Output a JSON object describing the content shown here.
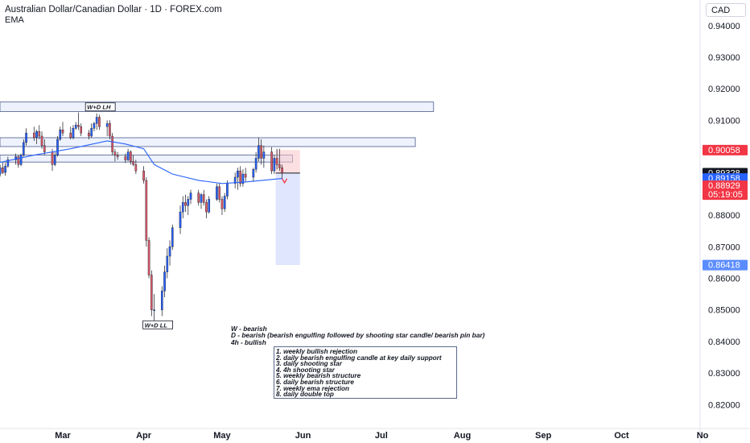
{
  "header": {
    "title": "Australian Dollar/Canadian Dollar · 1D · FOREX.com",
    "indicator": "EMA",
    "currency": "CAD"
  },
  "chart_data": {
    "type": "candlestick",
    "y_range": [
      0.8135,
      0.9435
    ],
    "y_ticks": [
      0.94,
      0.93,
      0.92,
      0.91,
      0.9,
      0.89,
      0.88,
      0.87,
      0.86,
      0.85,
      0.84,
      0.83,
      0.82
    ],
    "y_tick_labels": [
      "0.94000",
      "0.93000",
      "0.92000",
      "0.91000",
      "0.90000",
      "0.89000",
      "0.88000",
      "0.87000",
      "0.86000",
      "0.85000",
      "0.84000",
      "0.83000",
      "0.82000"
    ],
    "x_ticks": [
      {
        "label": "Mar",
        "date": "2024-03-01"
      },
      {
        "label": "Apr",
        "date": "2024-04-01"
      },
      {
        "label": "May",
        "date": "2024-05-01"
      },
      {
        "label": "Jun",
        "date": "2024-06-01"
      },
      {
        "label": "Jul",
        "date": "2024-07-01"
      },
      {
        "label": "Aug",
        "date": "2024-08-01"
      },
      {
        "label": "Sep",
        "date": "2024-09-01"
      },
      {
        "label": "Oct",
        "date": "2024-10-01"
      },
      {
        "label": "No",
        "date": "2024-11-01"
      }
    ],
    "x_range": [
      "2024-02-05",
      "2024-11-02"
    ],
    "colors": {
      "up": "#2962ff",
      "down": "#e05a6a",
      "ema": "#2962ff",
      "zone_fill": "#e8edfc",
      "zone_border": "#4a5a8a"
    },
    "candles": [
      [
        "2024-02-05",
        0.894,
        0.8945,
        0.892,
        0.893
      ],
      [
        "2024-02-06",
        0.893,
        0.896,
        0.8922,
        0.895
      ],
      [
        "2024-02-07",
        0.895,
        0.897,
        0.893,
        0.8935
      ],
      [
        "2024-02-08",
        0.8935,
        0.8965,
        0.8925,
        0.8955
      ],
      [
        "2024-02-09",
        0.8955,
        0.8985,
        0.895,
        0.8975
      ],
      [
        "2024-02-12",
        0.8975,
        0.8995,
        0.896,
        0.8985
      ],
      [
        "2024-02-13",
        0.8985,
        0.899,
        0.895,
        0.896
      ],
      [
        "2024-02-14",
        0.896,
        0.8995,
        0.8955,
        0.899
      ],
      [
        "2024-02-15",
        0.899,
        0.904,
        0.8985,
        0.903
      ],
      [
        "2024-02-16",
        0.903,
        0.9075,
        0.902,
        0.906
      ],
      [
        "2024-02-19",
        0.906,
        0.908,
        0.9035,
        0.9045
      ],
      [
        "2024-02-20",
        0.9045,
        0.907,
        0.9025,
        0.9065
      ],
      [
        "2024-02-21",
        0.9065,
        0.9085,
        0.904,
        0.905
      ],
      [
        "2024-02-22",
        0.905,
        0.9065,
        0.901,
        0.902
      ],
      [
        "2024-02-23",
        0.902,
        0.904,
        0.899,
        0.9
      ],
      [
        "2024-02-26",
        0.9,
        0.901,
        0.894,
        0.896
      ],
      [
        "2024-02-27",
        0.896,
        0.9,
        0.8955,
        0.899
      ],
      [
        "2024-02-28",
        0.899,
        0.905,
        0.8985,
        0.904
      ],
      [
        "2024-02-29",
        0.904,
        0.908,
        0.9035,
        0.907
      ],
      [
        "2024-03-01",
        0.907,
        0.9095,
        0.905,
        0.906
      ],
      [
        "2024-03-04",
        0.906,
        0.908,
        0.904,
        0.9045
      ],
      [
        "2024-03-05",
        0.9045,
        0.9085,
        0.904,
        0.9075
      ],
      [
        "2024-03-06",
        0.9075,
        0.9095,
        0.907,
        0.9085
      ],
      [
        "2024-03-07",
        0.9085,
        0.9125,
        0.907,
        0.908
      ],
      [
        "2024-03-08",
        0.908,
        0.909,
        0.905,
        0.906
      ],
      [
        "2024-03-11",
        0.906,
        0.907,
        0.904,
        0.905
      ],
      [
        "2024-03-12",
        0.905,
        0.909,
        0.9045,
        0.9075
      ],
      [
        "2024-03-13",
        0.9075,
        0.9095,
        0.9065,
        0.909
      ],
      [
        "2024-03-14",
        0.909,
        0.9122,
        0.907,
        0.911
      ],
      [
        "2024-03-15",
        0.911,
        0.9118,
        0.907,
        0.908
      ],
      [
        "2024-03-18",
        0.908,
        0.91,
        0.905,
        0.909
      ],
      [
        "2024-03-19",
        0.909,
        0.91,
        0.904,
        0.905
      ],
      [
        "2024-03-20",
        0.905,
        0.906,
        0.899,
        0.9
      ],
      [
        "2024-03-21",
        0.9,
        0.901,
        0.897,
        0.899
      ],
      [
        "2024-03-22",
        0.899,
        0.9,
        0.8975,
        0.8985
      ],
      [
        "2024-03-25",
        0.8985,
        0.8995,
        0.8965,
        0.8975
      ],
      [
        "2024-03-26",
        0.8975,
        0.901,
        0.897,
        0.9
      ],
      [
        "2024-03-27",
        0.9,
        0.9005,
        0.896,
        0.897
      ],
      [
        "2024-03-28",
        0.897,
        0.899,
        0.8955,
        0.896
      ],
      [
        "2024-03-29",
        0.896,
        0.8975,
        0.893,
        0.894
      ],
      [
        "2024-04-01",
        0.894,
        0.8955,
        0.89,
        0.891
      ],
      [
        "2024-04-02",
        0.891,
        0.892,
        0.87,
        0.872
      ],
      [
        "2024-04-03",
        0.872,
        0.873,
        0.86,
        0.861
      ],
      [
        "2024-04-04",
        0.861,
        0.8625,
        0.848,
        0.85
      ],
      [
        "2024-04-05",
        0.85,
        0.855,
        0.846,
        0.85
      ],
      [
        "2024-04-08",
        0.85,
        0.8575,
        0.848,
        0.856
      ],
      [
        "2024-04-09",
        0.856,
        0.864,
        0.854,
        0.862
      ],
      [
        "2024-04-10",
        0.862,
        0.8695,
        0.86,
        0.867
      ],
      [
        "2024-04-11",
        0.867,
        0.872,
        0.864,
        0.87
      ],
      [
        "2024-04-12",
        0.87,
        0.877,
        0.869,
        0.876
      ],
      [
        "2024-04-15",
        0.876,
        0.883,
        0.874,
        0.881
      ],
      [
        "2024-04-16",
        0.881,
        0.886,
        0.879,
        0.884
      ],
      [
        "2024-04-17",
        0.884,
        0.8865,
        0.881,
        0.883
      ],
      [
        "2024-04-18",
        0.883,
        0.886,
        0.88,
        0.885
      ],
      [
        "2024-04-19",
        0.885,
        0.888,
        0.8835,
        0.887
      ],
      [
        "2024-04-22",
        0.887,
        0.888,
        0.883,
        0.884
      ],
      [
        "2024-04-23",
        0.884,
        0.887,
        0.882,
        0.8865
      ],
      [
        "2024-04-24",
        0.8865,
        0.888,
        0.883,
        0.884
      ],
      [
        "2024-04-25",
        0.884,
        0.885,
        0.879,
        0.881
      ],
      [
        "2024-04-26",
        0.881,
        0.886,
        0.8805,
        0.885
      ],
      [
        "2024-04-29",
        0.885,
        0.89,
        0.8845,
        0.889
      ],
      [
        "2024-04-30",
        0.889,
        0.89,
        0.884,
        0.885
      ],
      [
        "2024-05-01",
        0.885,
        0.886,
        0.88,
        0.882
      ],
      [
        "2024-05-02",
        0.882,
        0.887,
        0.881,
        0.886
      ],
      [
        "2024-05-03",
        0.886,
        0.891,
        0.885,
        0.89
      ],
      [
        "2024-05-06",
        0.89,
        0.8935,
        0.8885,
        0.892
      ],
      [
        "2024-05-07",
        0.892,
        0.895,
        0.888,
        0.894
      ],
      [
        "2024-05-08",
        0.894,
        0.8955,
        0.889,
        0.89
      ],
      [
        "2024-05-09",
        0.89,
        0.8945,
        0.889,
        0.893
      ],
      [
        "2024-05-10",
        0.893,
        0.895,
        0.8905,
        0.892
      ],
      [
        "2024-05-13",
        0.892,
        0.895,
        0.8905,
        0.8945
      ],
      [
        "2024-05-14",
        0.8945,
        0.9,
        0.8935,
        0.898
      ],
      [
        "2024-05-15",
        0.898,
        0.9045,
        0.897,
        0.902
      ],
      [
        "2024-05-16",
        0.902,
        0.904,
        0.896,
        0.898
      ],
      [
        "2024-05-17",
        0.898,
        0.902,
        0.895,
        0.9
      ],
      [
        "2024-05-20",
        0.9,
        0.9015,
        0.893,
        0.894
      ],
      [
        "2024-05-21",
        0.894,
        0.899,
        0.893,
        0.898
      ],
      [
        "2024-05-22",
        0.898,
        0.901,
        0.8945,
        0.896
      ],
      [
        "2024-05-23",
        0.896,
        0.901,
        0.894,
        0.895
      ],
      [
        "2024-05-24",
        0.895,
        0.896,
        0.8915,
        0.8933
      ]
    ],
    "ema": [
      [
        "2024-02-05",
        0.8965
      ],
      [
        "2024-02-19",
        0.899
      ],
      [
        "2024-03-04",
        0.901
      ],
      [
        "2024-03-18",
        0.9035
      ],
      [
        "2024-03-25",
        0.9025
      ],
      [
        "2024-04-01",
        0.901
      ],
      [
        "2024-04-05",
        0.896
      ],
      [
        "2024-04-12",
        0.893
      ],
      [
        "2024-04-22",
        0.891
      ],
      [
        "2024-05-01",
        0.89
      ],
      [
        "2024-05-10",
        0.8905
      ],
      [
        "2024-05-24",
        0.8916
      ]
    ],
    "zones": [
      {
        "from": "2024-02-05",
        "to": "2024-07-21",
        "top": 0.9158,
        "bottom": 0.9128
      },
      {
        "from": "2024-02-05",
        "to": "2024-07-14",
        "top": 0.9045,
        "bottom": 0.9017
      },
      {
        "from": "2024-02-05",
        "to": "2024-05-28",
        "top": 0.899,
        "bottom": 0.8968
      }
    ],
    "trade": {
      "from": "2024-05-20",
      "to": "2024-05-29",
      "entry": 0.8933,
      "stop": 0.9006,
      "target": 0.8642
    },
    "annotations": [
      {
        "text": "W+D LH",
        "date": "2024-03-14",
        "price": 0.914
      },
      {
        "text": "W+D LL",
        "date": "2024-04-05",
        "price": 0.845
      }
    ],
    "price_labels": [
      {
        "text": "0.90058",
        "price": 0.90058,
        "bg": "#f23645",
        "fg": "#ffffff"
      },
      {
        "text": "0.89328",
        "price": 0.89328,
        "bg": "#131722",
        "fg": "#ffffff"
      },
      {
        "text": "0.89158",
        "price": 0.89158,
        "bg": "#2962ff",
        "fg": "#ffffff"
      },
      {
        "text": "0.88929",
        "price": 0.88929,
        "bg": "#f23645",
        "fg": "#ffffff",
        "extra": "05:19:05"
      },
      {
        "text": "0.86418",
        "price": 0.86418,
        "bg": "#5b8cff",
        "fg": "#ffffff"
      }
    ]
  },
  "notes": {
    "bias": [
      "W - bearish",
      "D - bearish (bearish engulfing followed by shooting star candle/ bearish pin bar)",
      "4h - bullish"
    ],
    "list": [
      "1. weekly bullish rejection",
      "2. daily bearish engulfing candle at key daily support",
      "3. daily shooting star",
      "4. 4h shooting star",
      "5. weekly bearish structure",
      "6. daily bearish structure",
      "7. weekly ema rejection",
      "8. daily double top"
    ]
  }
}
